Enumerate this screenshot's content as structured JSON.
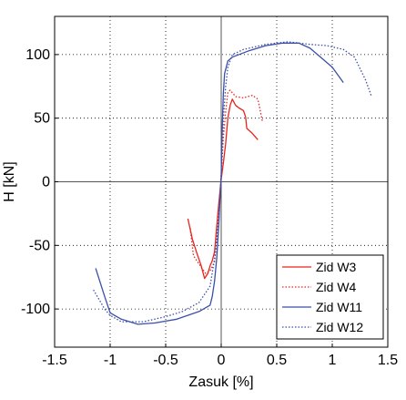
{
  "chart_data": {
    "type": "line",
    "title": "",
    "xlabel": "Zasuk [%]",
    "ylabel": "H [kN]",
    "xlim": [
      -1.5,
      1.5
    ],
    "ylim": [
      -130,
      130
    ],
    "xticks": [
      -1.5,
      -1,
      -0.5,
      0,
      0.5,
      1,
      1.5
    ],
    "xtick_labels": [
      "-1.5",
      "-1",
      "-0.5",
      "0",
      "0.5",
      "1",
      "1.5"
    ],
    "yticks": [
      -100,
      -50,
      0,
      50,
      100
    ],
    "ytick_labels": [
      "-100",
      "-50",
      "0",
      "50",
      "100"
    ],
    "grid": true,
    "grid_style": "dotted",
    "zero_lines": true,
    "legend_position": "bottom-right",
    "series": [
      {
        "name": "Zid W3",
        "color": "#e8241d",
        "dash": "solid",
        "points": [
          [
            0.33,
            33
          ],
          [
            0.28,
            38
          ],
          [
            0.23,
            42
          ],
          [
            0.22,
            51
          ],
          [
            0.2,
            56
          ],
          [
            0.16,
            58
          ],
          [
            0.13,
            60
          ],
          [
            0.1,
            65
          ],
          [
            0.08,
            60
          ],
          [
            0.06,
            50
          ],
          [
            0.04,
            30
          ],
          [
            0.02,
            15
          ],
          [
            0.0,
            2
          ],
          [
            -0.02,
            -15
          ],
          [
            -0.04,
            -35
          ],
          [
            -0.06,
            -55
          ],
          [
            -0.08,
            -62
          ],
          [
            -0.1,
            -66
          ],
          [
            -0.12,
            -72
          ],
          [
            -0.15,
            -76
          ],
          [
            -0.18,
            -66
          ],
          [
            -0.22,
            -56
          ],
          [
            -0.26,
            -45
          ],
          [
            -0.3,
            -29
          ]
        ]
      },
      {
        "name": "Zid W4",
        "color": "#e8241d",
        "dash": "dotted",
        "points": [
          [
            0.37,
            48
          ],
          [
            0.33,
            65
          ],
          [
            0.28,
            68
          ],
          [
            0.2,
            66
          ],
          [
            0.13,
            67
          ],
          [
            0.08,
            72
          ],
          [
            0.06,
            70
          ],
          [
            0.04,
            55
          ],
          [
            0.02,
            35
          ],
          [
            0.0,
            5
          ],
          [
            -0.02,
            -20
          ],
          [
            -0.04,
            -45
          ],
          [
            -0.06,
            -63
          ],
          [
            -0.1,
            -70
          ],
          [
            -0.14,
            -72
          ],
          [
            -0.18,
            -67
          ],
          [
            -0.22,
            -62
          ],
          [
            -0.25,
            -58
          ],
          [
            -0.28,
            -35
          ]
        ]
      },
      {
        "name": "Zid W11",
        "color": "#3b4fa8",
        "dash": "solid",
        "points": [
          [
            1.1,
            78
          ],
          [
            1.0,
            90
          ],
          [
            0.8,
            105
          ],
          [
            0.7,
            109
          ],
          [
            0.55,
            109
          ],
          [
            0.4,
            107
          ],
          [
            0.25,
            103
          ],
          [
            0.1,
            98
          ],
          [
            0.06,
            95
          ],
          [
            0.03,
            85
          ],
          [
            0.02,
            70
          ],
          [
            0.01,
            45
          ],
          [
            0.0,
            5
          ],
          [
            -0.02,
            -30
          ],
          [
            -0.04,
            -60
          ],
          [
            -0.06,
            -78
          ],
          [
            -0.08,
            -90
          ],
          [
            -0.1,
            -97
          ],
          [
            -0.2,
            -102
          ],
          [
            -0.4,
            -108
          ],
          [
            -0.6,
            -111
          ],
          [
            -0.75,
            -112
          ],
          [
            -0.9,
            -108
          ],
          [
            -1.0,
            -103
          ],
          [
            -1.05,
            -90
          ],
          [
            -1.13,
            -68
          ]
        ]
      },
      {
        "name": "Zid W12",
        "color": "#3b4fa8",
        "dash": "dotted",
        "points": [
          [
            1.35,
            68
          ],
          [
            1.3,
            80
          ],
          [
            1.2,
            98
          ],
          [
            1.1,
            104
          ],
          [
            0.95,
            107
          ],
          [
            0.8,
            108
          ],
          [
            0.6,
            110
          ],
          [
            0.4,
            108
          ],
          [
            0.2,
            104
          ],
          [
            0.1,
            100
          ],
          [
            0.06,
            90
          ],
          [
            0.04,
            75
          ],
          [
            0.02,
            50
          ],
          [
            0.0,
            5
          ],
          [
            -0.02,
            -25
          ],
          [
            -0.05,
            -55
          ],
          [
            -0.1,
            -82
          ],
          [
            -0.2,
            -95
          ],
          [
            -0.35,
            -102
          ],
          [
            -0.5,
            -106
          ],
          [
            -0.7,
            -110
          ],
          [
            -0.9,
            -110
          ],
          [
            -1.0,
            -105
          ],
          [
            -1.05,
            -100
          ],
          [
            -1.15,
            -85
          ]
        ]
      }
    ]
  }
}
